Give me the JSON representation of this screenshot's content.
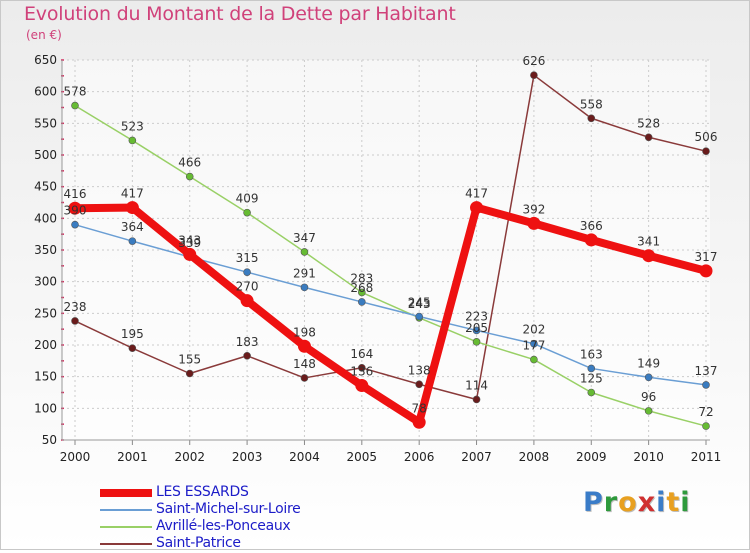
{
  "title": "Evolution du Montant de la Dette par Habitant",
  "unit": "(en €)",
  "brand": {
    "text": "Proxiti",
    "colors": [
      "#3a7cc8",
      "#2e9a3c",
      "#e8a020",
      "#d03030",
      "#3a7cc8",
      "#e8a020",
      "#2e9a3c"
    ]
  },
  "chart_data": {
    "type": "line",
    "x": [
      "2000",
      "2001",
      "2002",
      "2003",
      "2004",
      "2005",
      "2006",
      "2007",
      "2008",
      "2009",
      "2010",
      "2011"
    ],
    "ylim": [
      50,
      650
    ],
    "yticks": [
      50,
      100,
      150,
      200,
      250,
      300,
      350,
      400,
      450,
      500,
      550,
      600,
      650
    ],
    "grid": true,
    "legend_position": "bottom-left",
    "series": [
      {
        "name": "LES ESSARDS",
        "color": "#ee1111",
        "point_color": "#ee1111",
        "width": 8,
        "radius": 6.5,
        "values": [
          416,
          417,
          343,
          270,
          198,
          136,
          78,
          417,
          392,
          366,
          341,
          317
        ],
        "labels": [
          "416",
          "417",
          "343",
          "270",
          "198",
          "136",
          "78",
          "417",
          "392",
          "366",
          "341",
          "317"
        ]
      },
      {
        "name": "Saint-Michel-sur-Loire",
        "color": "#6a9ed4",
        "point_color": "#3a7cc0",
        "width": 1.5,
        "radius": 3.5,
        "values": [
          390,
          364,
          339,
          315,
          291,
          268,
          245,
          223,
          202,
          163,
          149,
          137
        ],
        "labels": [
          "390",
          "364",
          "339",
          "315",
          "291",
          "268",
          "245",
          "223",
          "202",
          "163",
          "149",
          "137"
        ]
      },
      {
        "name": "Avrillé-les-Ponceaux",
        "color": "#99d066",
        "point_color": "#66bb33",
        "width": 1.5,
        "radius": 3.5,
        "values": [
          578,
          523,
          466,
          409,
          347,
          283,
          243,
          205,
          177,
          125,
          96,
          72
        ],
        "labels": [
          "578",
          "523",
          "466",
          "409",
          "347",
          "283",
          "243",
          "205",
          "177",
          "125",
          "96",
          "72"
        ]
      },
      {
        "name": "Saint-Patrice",
        "color": "#8a3a3a",
        "point_color": "#6a1c1c",
        "width": 1.5,
        "radius": 3.5,
        "values": [
          238,
          195,
          155,
          183,
          148,
          164,
          138,
          114,
          626,
          558,
          528,
          506
        ],
        "labels": [
          "238",
          "195",
          "155",
          "183",
          "148",
          "164",
          "138",
          "114",
          "626",
          "558",
          "528",
          "506"
        ]
      }
    ]
  }
}
